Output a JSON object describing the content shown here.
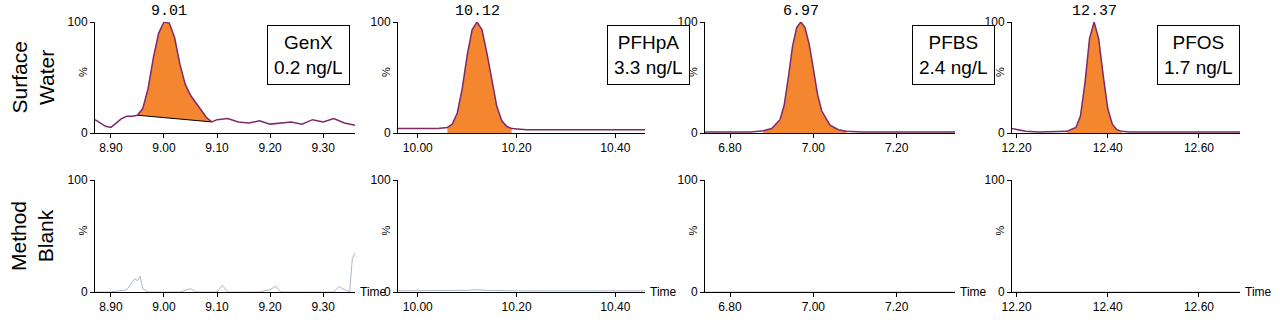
{
  "row_labels": [
    "Surface Water",
    "Method Blank"
  ],
  "chart_data": [
    {
      "type": "area",
      "color": "#f4862f",
      "grid": false,
      "x": [
        8.87,
        8.88,
        8.89,
        8.9,
        8.91,
        8.92,
        8.93,
        8.94,
        8.95,
        8.96,
        8.97,
        8.98,
        8.99,
        9.0,
        9.01,
        9.02,
        9.03,
        9.04,
        9.05,
        9.06,
        9.07,
        9.08,
        9.09,
        9.1,
        9.12,
        9.14,
        9.16,
        9.18,
        9.2,
        9.22,
        9.24,
        9.26,
        9.28,
        9.3,
        9.32,
        9.34,
        9.36
      ],
      "values": [
        12,
        9,
        6,
        5,
        9,
        13,
        15,
        15,
        16,
        22,
        40,
        68,
        90,
        100,
        99,
        86,
        62,
        44,
        34,
        27,
        20,
        14,
        10,
        12,
        13,
        10,
        9,
        11,
        8,
        9,
        10,
        8,
        12,
        10,
        13,
        9,
        7
      ],
      "peak_range": [
        8.95,
        9.09
      ],
      "baseline": {
        "x": [
          8.95,
          9.09
        ],
        "values": [
          16,
          10
        ]
      },
      "xlim": [
        8.87,
        9.36
      ],
      "xticks": [
        {
          "value": 8.9,
          "label": "8.90"
        },
        {
          "value": 9.0,
          "label": "9.00"
        },
        {
          "value": 9.1,
          "label": "9.10"
        },
        {
          "value": 9.2,
          "label": "9.20"
        },
        {
          "value": 9.3,
          "label": "9.30"
        }
      ],
      "ylim": [
        0,
        100
      ],
      "yticks": [
        0,
        100
      ],
      "ylabel": "%",
      "annotations": [
        {
          "x": 9.01,
          "y": 100,
          "text": "9.01"
        }
      ],
      "label": [
        "GenX",
        "0.2 ng/L"
      ]
    },
    {
      "type": "area",
      "color": "#f4862f",
      "grid": false,
      "x": [
        9.96,
        9.98,
        10.0,
        10.02,
        10.04,
        10.06,
        10.07,
        10.08,
        10.09,
        10.1,
        10.11,
        10.12,
        10.13,
        10.14,
        10.15,
        10.16,
        10.17,
        10.18,
        10.19,
        10.2,
        10.22,
        10.26,
        10.3,
        10.34,
        10.38,
        10.42,
        10.46
      ],
      "values": [
        4,
        4,
        4,
        4,
        4,
        5,
        8,
        18,
        40,
        70,
        93,
        100,
        93,
        72,
        46,
        24,
        11,
        6,
        4,
        3.5,
        3,
        3,
        3,
        3,
        3,
        3,
        3
      ],
      "peak_range": [
        10.06,
        10.19
      ],
      "xlim": [
        9.96,
        10.46
      ],
      "xticks": [
        {
          "value": 10.0,
          "label": "10.00"
        },
        {
          "value": 10.2,
          "label": "10.20"
        },
        {
          "value": 10.4,
          "label": "10.40"
        }
      ],
      "ylim": [
        0,
        100
      ],
      "yticks": [
        0,
        100
      ],
      "ylabel": "%",
      "annotations": [
        {
          "x": 10.12,
          "y": 100,
          "text": "10.12"
        }
      ],
      "label": [
        "PFHpA",
        "3.3 ng/L"
      ]
    },
    {
      "type": "area",
      "color": "#f4862f",
      "grid": false,
      "x": [
        6.74,
        6.78,
        6.82,
        6.85,
        6.88,
        6.9,
        6.92,
        6.93,
        6.94,
        6.95,
        6.96,
        6.97,
        6.98,
        6.99,
        7.0,
        7.01,
        7.02,
        7.04,
        7.06,
        7.08,
        7.12,
        7.2,
        7.28,
        7.34
      ],
      "values": [
        1,
        1,
        1,
        1,
        2,
        4,
        12,
        25,
        50,
        78,
        95,
        100,
        95,
        80,
        58,
        35,
        20,
        7,
        3,
        1.5,
        1,
        1,
        1,
        1
      ],
      "peak_range": [
        6.86,
        7.09
      ],
      "xlim": [
        6.74,
        7.34
      ],
      "xticks": [
        {
          "value": 6.8,
          "label": "6.80"
        },
        {
          "value": 7.0,
          "label": "7.00"
        },
        {
          "value": 7.2,
          "label": "7.20"
        }
      ],
      "ylim": [
        0,
        100
      ],
      "yticks": [
        0,
        100
      ],
      "ylabel": "%",
      "annotations": [
        {
          "x": 6.97,
          "y": 100,
          "text": "6.97"
        }
      ],
      "label": [
        "PFBS",
        "2.4 ng/L"
      ]
    },
    {
      "type": "area",
      "color": "#f4862f",
      "grid": false,
      "x": [
        12.19,
        12.2,
        12.22,
        12.25,
        12.28,
        12.31,
        12.33,
        12.34,
        12.35,
        12.36,
        12.37,
        12.38,
        12.39,
        12.4,
        12.41,
        12.42,
        12.43,
        12.45,
        12.5,
        12.55,
        12.6,
        12.65,
        12.69
      ],
      "values": [
        4,
        3,
        1.5,
        1,
        1,
        1.5,
        5,
        15,
        45,
        85,
        100,
        85,
        52,
        22,
        8,
        3,
        1.5,
        1,
        1,
        1,
        1,
        1,
        1
      ],
      "peak_range": [
        12.31,
        12.44
      ],
      "xlim": [
        12.19,
        12.69
      ],
      "xticks": [
        {
          "value": 12.2,
          "label": "12.20"
        },
        {
          "value": 12.4,
          "label": "12.40"
        },
        {
          "value": 12.6,
          "label": "12.60"
        }
      ],
      "ylim": [
        0,
        100
      ],
      "yticks": [
        0,
        100
      ],
      "ylabel": "%",
      "annotations": [
        {
          "x": 12.37,
          "y": 100,
          "text": "12.37"
        }
      ],
      "label": [
        "PFOS",
        "1.7 ng/L"
      ]
    },
    {
      "type": "line",
      "color": "#a9b6cc",
      "grid": false,
      "x": [
        8.87,
        8.9,
        8.93,
        8.94,
        8.945,
        8.95,
        8.955,
        8.96,
        8.97,
        9.0,
        9.03,
        9.05,
        9.06,
        9.07,
        9.08,
        9.1,
        9.11,
        9.12,
        9.15,
        9.18,
        9.2,
        9.21,
        9.22,
        9.25,
        9.28,
        9.3,
        9.32,
        9.33,
        9.34,
        9.35,
        9.355,
        9.36
      ],
      "values": [
        0,
        0,
        2,
        8,
        12,
        10,
        14,
        3,
        0,
        0,
        0,
        3,
        0,
        0,
        0,
        0,
        6,
        0,
        0,
        0,
        2,
        5,
        0,
        0,
        0,
        0,
        0,
        5,
        2,
        0,
        30,
        35
      ],
      "xlim": [
        8.87,
        9.36
      ],
      "xticks": [
        {
          "value": 8.9,
          "label": "8.90"
        },
        {
          "value": 9.0,
          "label": "9.00"
        },
        {
          "value": 9.1,
          "label": "9.10"
        },
        {
          "value": 9.2,
          "label": "9.20"
        },
        {
          "value": 9.3,
          "label": "9.30"
        }
      ],
      "ylim": [
        0,
        100
      ],
      "yticks": [
        0,
        100
      ],
      "ylabel": "%",
      "xlabel": "Time"
    },
    {
      "type": "line",
      "color": "#a9b6cc",
      "grid": false,
      "x": [
        9.96,
        10.05,
        10.1,
        10.12,
        10.14,
        10.2,
        10.3,
        10.4,
        10.46
      ],
      "values": [
        1,
        1,
        1.5,
        2,
        1.5,
        1,
        1,
        1,
        1
      ],
      "xlim": [
        9.96,
        10.46
      ],
      "xticks": [
        {
          "value": 10.0,
          "label": "10.00"
        },
        {
          "value": 10.2,
          "label": "10.20"
        },
        {
          "value": 10.4,
          "label": "10.40"
        }
      ],
      "ylim": [
        0,
        100
      ],
      "yticks": [
        0,
        100
      ],
      "ylabel": "%",
      "xlabel": "Time"
    },
    {
      "type": "line",
      "color": "#a9b6cc",
      "grid": false,
      "x": [
        6.74,
        7.34
      ],
      "values": [
        0,
        0
      ],
      "xlim": [
        6.74,
        7.34
      ],
      "xticks": [
        {
          "value": 6.8,
          "label": "6.80"
        },
        {
          "value": 7.0,
          "label": "7.00"
        },
        {
          "value": 7.2,
          "label": "7.20"
        }
      ],
      "ylim": [
        0,
        100
      ],
      "yticks": [
        0,
        100
      ],
      "ylabel": "%",
      "xlabel": "Time"
    },
    {
      "type": "line",
      "color": "#a9b6cc",
      "grid": false,
      "x": [
        12.19,
        12.69
      ],
      "values": [
        0,
        0
      ],
      "xlim": [
        12.19,
        12.69
      ],
      "xticks": [
        {
          "value": 12.2,
          "label": "12.20"
        },
        {
          "value": 12.4,
          "label": "12.40"
        },
        {
          "value": 12.6,
          "label": "12.60"
        }
      ],
      "ylim": [
        0,
        100
      ],
      "yticks": [
        0,
        100
      ],
      "ylabel": "%",
      "xlabel": "Time"
    }
  ]
}
